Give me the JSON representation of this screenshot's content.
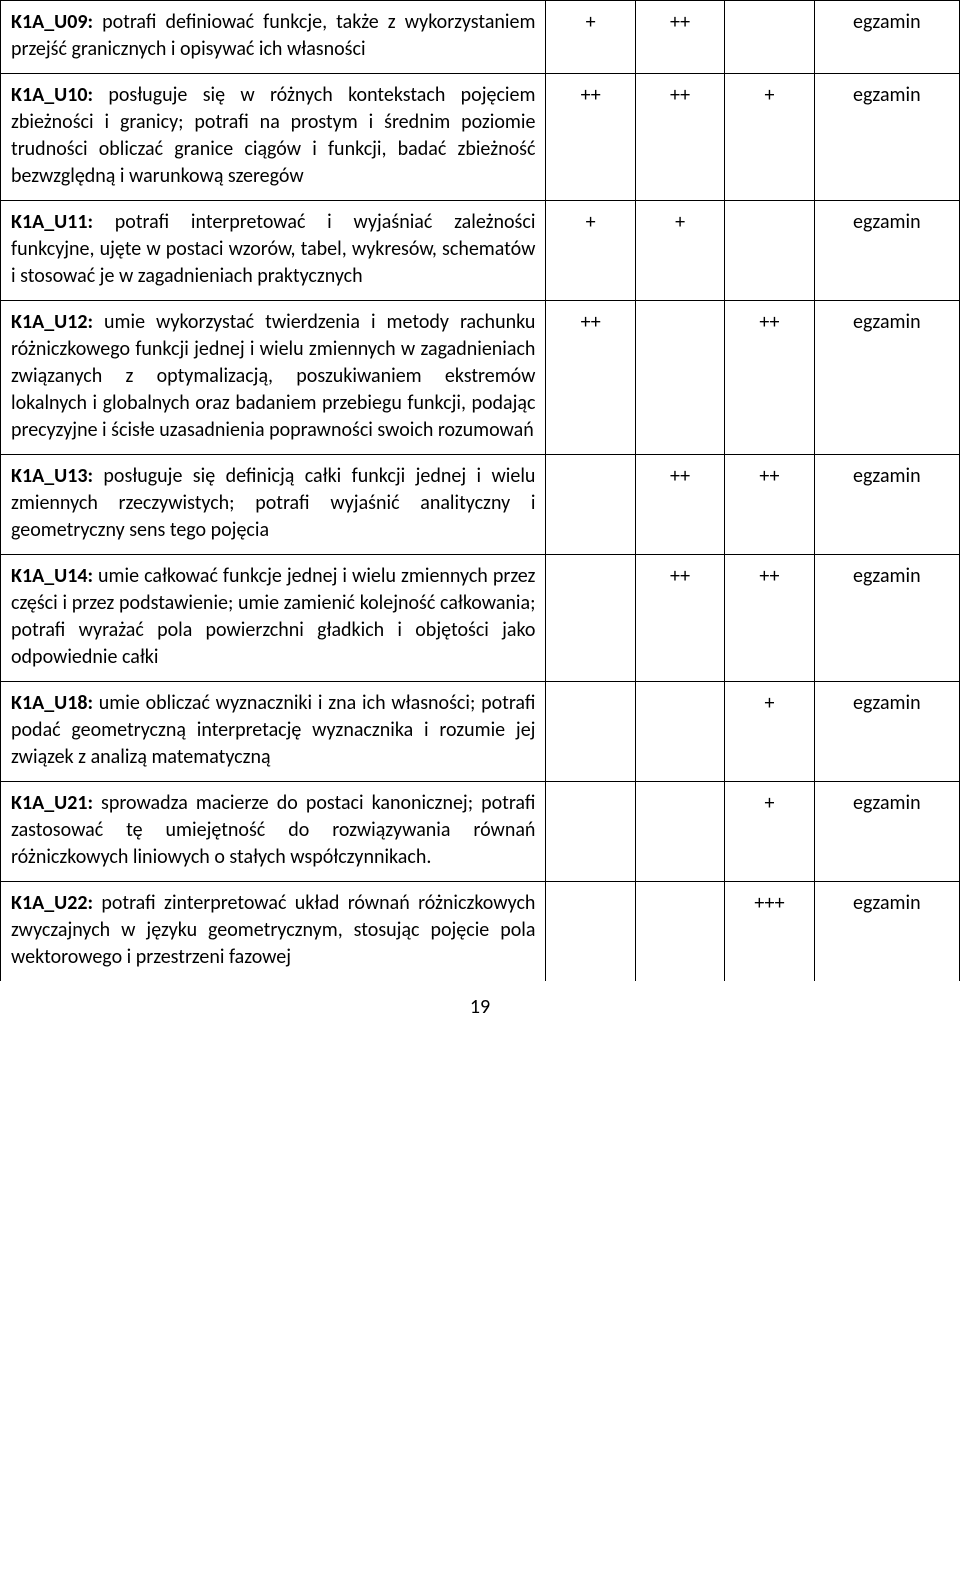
{
  "page_number": "19",
  "columns": {
    "desc_width": 488,
    "mark_width": 80,
    "exam_width": 130
  },
  "rows": [
    {
      "code": "K1A_U09:",
      "desc": " potrafi definiować funkcje, także z wykorzystaniem przejść granicznych i opisywać ich własności",
      "c1": "+",
      "c2": "++",
      "c3": "",
      "exam": "egzamin"
    },
    {
      "code": "K1A_U10:",
      "desc": " posługuje się w różnych kontekstach pojęciem zbieżności i granicy; potrafi na prostym i średnim poziomie trudności obliczać granice ciągów i funkcji, badać zbieżność bezwzględną i warunkową szeregów",
      "c1": "++",
      "c2": "++",
      "c3": "+",
      "exam": "egzamin"
    },
    {
      "code": "K1A_U11:",
      "desc": " potrafi interpretować i wyjaśniać zależności funkcyjne, ujęte w postaci wzorów, tabel, wykresów, schematów i stosować je w zagadnieniach praktycznych",
      "c1": "+",
      "c2": "+",
      "c3": "",
      "exam": "egzamin"
    },
    {
      "code": "K1A_U12:",
      "desc": " umie wykorzystać twierdzenia i metody rachunku różniczkowego funkcji jednej i wielu zmiennych w zagadnieniach związanych z optymalizacją, poszukiwaniem ekstremów lokalnych i globalnych oraz badaniem przebiegu funkcji, podając precyzyjne i ścisłe uzasadnienia poprawności swoich rozumowań",
      "c1": "++",
      "c2": "",
      "c3": "++",
      "exam": "egzamin"
    },
    {
      "code": "K1A_U13:",
      "desc": " posługuje się definicją całki funkcji jednej i wielu zmiennych rzeczywistych; potrafi wyjaśnić analityczny i geometryczny sens tego pojęcia",
      "c1": "",
      "c2": "++",
      "c3": "++",
      "exam": "egzamin"
    },
    {
      "code": "K1A_U14:",
      "desc": " umie całkować funkcje jednej i wielu zmiennych przez części i przez podstawienie; umie zamienić kolejność całkowania; potrafi wyrażać pola powierzchni gładkich i objętości jako odpowiednie całki",
      "c1": "",
      "c2": "++",
      "c3": "++",
      "exam": "egzamin"
    },
    {
      "code": "K1A_U18:",
      "desc": " umie obliczać wyznaczniki i zna ich własności; potrafi podać geometryczną interpretację wyznacznika i rozumie jej związek z analizą matematyczną",
      "c1": "",
      "c2": "",
      "c3": "+",
      "exam": "egzamin"
    },
    {
      "code": "K1A_U21:",
      "desc": " sprowadza macierze do postaci kanonicznej; potrafi zastosować tę umiejętność do rozwiązywania równań różniczkowych liniowych o stałych współczynnikach.",
      "c1": "",
      "c2": "",
      "c3": "+",
      "exam": "egzamin"
    },
    {
      "code": "K1A_U22:",
      "desc": " potrafi zinterpretować układ równań różniczkowych zwyczajnych w języku geometrycznym, stosując pojęcie pola wektorowego i przestrzeni fazowej",
      "c1": "",
      "c2": "",
      "c3": "+++",
      "exam": "egzamin"
    }
  ]
}
